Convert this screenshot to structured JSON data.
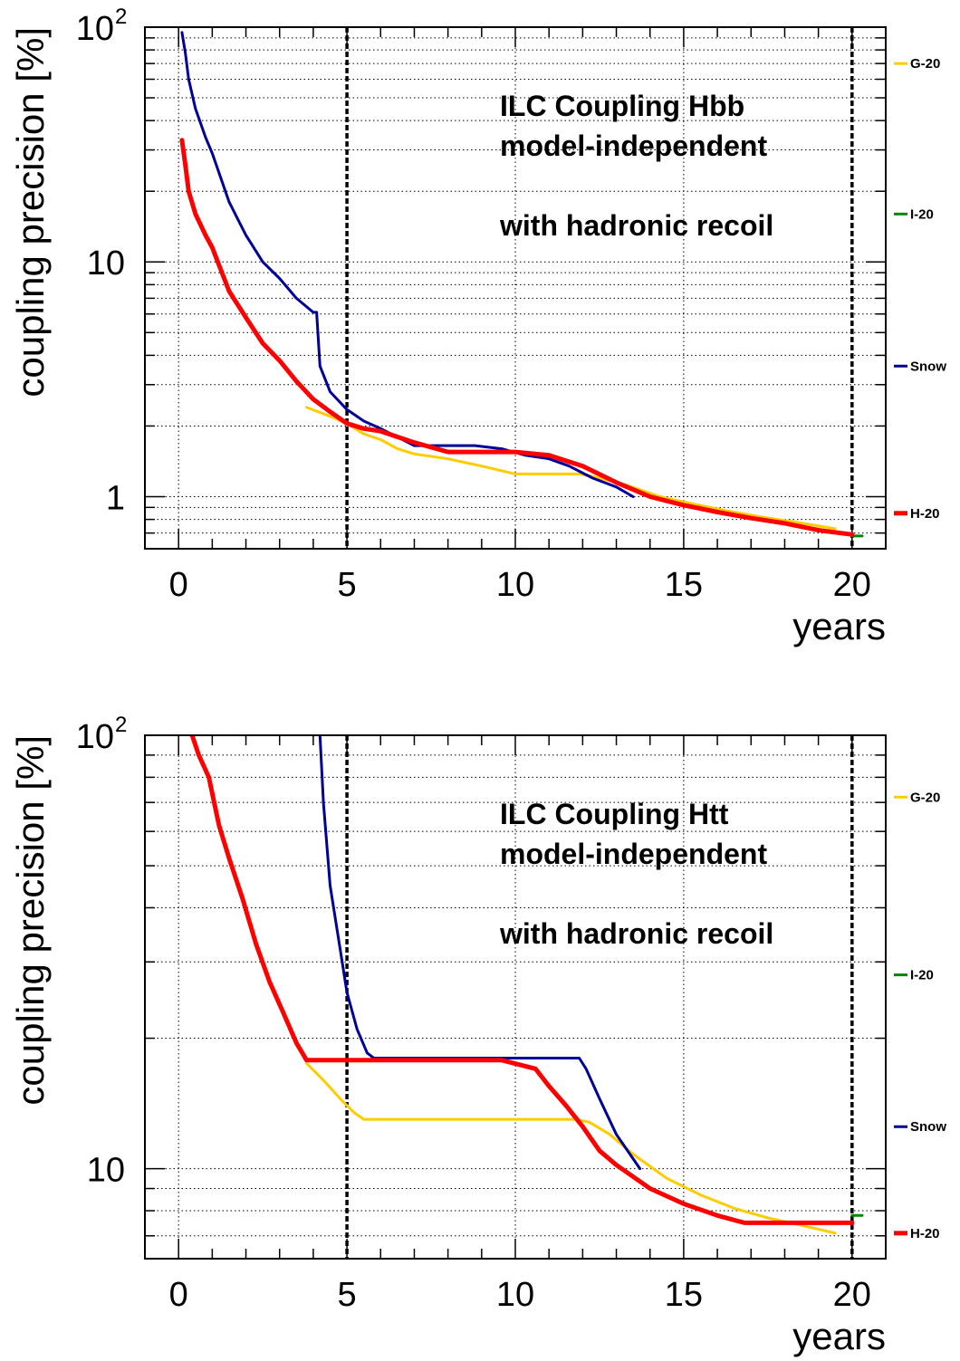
{
  "chart_data": [
    {
      "type": "line",
      "xlabel": "years",
      "ylabel": "coupling precision [%]",
      "xlim": [
        -1,
        21
      ],
      "ylim": [
        0.6,
        100
      ],
      "yscale": "log",
      "xticks": [
        "0",
        "5",
        "10",
        "15",
        "20"
      ],
      "yticks": [
        {
          "value": 1,
          "label": "1"
        },
        {
          "value": 10,
          "label": "10"
        },
        {
          "value": 100,
          "label": "10",
          "exp": "2"
        }
      ],
      "grid": true,
      "vlines": [
        5,
        20
      ],
      "annotations": [
        "ILC Coupling Hbb",
        "model-independent",
        "with hadronic recoil"
      ],
      "legend": [
        {
          "name": "G-20",
          "color": "#ffcc00",
          "value": 70
        },
        {
          "name": "I-20",
          "color": "#008800",
          "value": 16
        },
        {
          "name": "Snow",
          "color": "#000099",
          "value": 3.6
        },
        {
          "name": "H-20",
          "color": "#ff0000",
          "value": 0.85
        }
      ],
      "series": [
        {
          "name": "G-20",
          "color": "#ffcc00",
          "width": 3,
          "x": [
            3.8,
            4.5,
            5.0,
            5.5,
            6.0,
            6.5,
            7.0,
            8.0,
            9.0,
            10.0,
            11.0,
            11.9,
            12.3,
            13.3,
            14.3,
            15.3,
            16.3,
            17.3,
            18.3,
            19.5
          ],
          "y": [
            2.4,
            2.2,
            2.05,
            1.85,
            1.75,
            1.6,
            1.52,
            1.45,
            1.35,
            1.25,
            1.25,
            1.25,
            1.22,
            1.12,
            1.0,
            0.93,
            0.87,
            0.82,
            0.78,
            0.73
          ]
        },
        {
          "name": "I-20",
          "color": "#008800",
          "width": 3,
          "x": [
            20.0,
            20.3
          ],
          "y": [
            0.68,
            0.68
          ]
        },
        {
          "name": "Snow",
          "color": "#000099",
          "width": 3,
          "x": [
            0.1,
            0.2,
            0.3,
            0.5,
            0.8,
            1.0,
            1.2,
            1.5,
            2.0,
            2.5,
            3.0,
            3.5,
            4.0,
            4.1,
            4.2,
            4.5,
            5.0,
            5.5,
            6.0,
            7.0,
            8.0,
            8.8,
            9.6,
            10.3,
            11.0,
            11.6,
            12.3,
            13.0,
            13.5
          ],
          "y": [
            95,
            78,
            60,
            45,
            34,
            29,
            24,
            18,
            13,
            10,
            8.5,
            7,
            6.1,
            6.1,
            3.6,
            2.8,
            2.35,
            2.1,
            1.95,
            1.65,
            1.65,
            1.65,
            1.6,
            1.5,
            1.45,
            1.35,
            1.2,
            1.1,
            1.0
          ]
        },
        {
          "name": "H-20",
          "color": "#ff0000",
          "width": 5,
          "x": [
            0.1,
            0.2,
            0.3,
            0.5,
            0.8,
            1.0,
            1.5,
            2.0,
            2.5,
            3.0,
            3.5,
            4.0,
            4.5,
            5.0,
            5.5,
            6.0,
            7.0,
            8.0,
            9.0,
            10.0,
            11.0,
            12.0,
            13.0,
            14.0,
            15.0,
            16.0,
            17.0,
            18.0,
            19.0,
            20.0
          ],
          "y": [
            33,
            26,
            20,
            16,
            13,
            11.5,
            7.5,
            5.8,
            4.5,
            3.8,
            3.1,
            2.6,
            2.3,
            2.05,
            1.95,
            1.9,
            1.7,
            1.55,
            1.55,
            1.55,
            1.5,
            1.35,
            1.15,
            1.0,
            0.92,
            0.86,
            0.81,
            0.77,
            0.72,
            0.69
          ]
        }
      ]
    },
    {
      "type": "line",
      "xlabel": "years",
      "ylabel": "coupling precision [%]",
      "xlim": [
        -1,
        21
      ],
      "ylim": [
        6.2,
        100
      ],
      "yscale": "log",
      "xticks": [
        "0",
        "5",
        "10",
        "15",
        "20"
      ],
      "yticks": [
        {
          "value": 10,
          "label": "10"
        },
        {
          "value": 100,
          "label": "10",
          "exp": "2"
        }
      ],
      "grid": true,
      "vlines": [
        5,
        20
      ],
      "annotations": [
        "ILC Coupling Htt",
        "model-independent",
        "with hadronic recoil"
      ],
      "legend": [
        {
          "name": "G-20",
          "color": "#ffcc00",
          "value": 72
        },
        {
          "name": "I-20",
          "color": "#008800",
          "value": 28
        },
        {
          "name": "Snow",
          "color": "#000099",
          "value": 12.5
        },
        {
          "name": "H-20",
          "color": "#ff0000",
          "value": 7.1
        }
      ],
      "series": [
        {
          "name": "G-20",
          "color": "#ffcc00",
          "width": 3,
          "x": [
            3.8,
            4.3,
            4.8,
            5.2,
            5.5,
            6.0,
            7.0,
            8.0,
            9.0,
            10.0,
            11.0,
            11.8,
            12.2,
            12.8,
            13.5,
            14.5,
            15.5,
            16.5,
            17.5,
            18.5,
            19.5
          ],
          "y": [
            17.5,
            16,
            14.5,
            13.5,
            13,
            13,
            13,
            13,
            13,
            13,
            13,
            13,
            12.8,
            12,
            10.8,
            9.5,
            8.7,
            8.1,
            7.7,
            7.4,
            7.1
          ]
        },
        {
          "name": "I-20",
          "color": "#008800",
          "width": 3,
          "x": [
            20.0,
            20.3
          ],
          "y": [
            7.8,
            7.8
          ]
        },
        {
          "name": "Snow",
          "color": "#000099",
          "width": 3,
          "x": [
            4.2,
            4.3,
            4.5,
            4.8,
            5.0,
            5.3,
            5.6,
            5.8,
            7.0,
            8.0,
            9.0,
            10.0,
            11.0,
            11.6,
            11.9,
            12.1,
            12.5,
            13.0,
            13.7
          ],
          "y": [
            100,
            70,
            45,
            32,
            25.5,
            21,
            18.5,
            18,
            18,
            18,
            18,
            18,
            18,
            18,
            18,
            17,
            14.5,
            12,
            10
          ]
        },
        {
          "name": "H-20",
          "color": "#ff0000",
          "width": 5,
          "x": [
            0.4,
            0.6,
            0.9,
            1.2,
            1.5,
            1.9,
            2.3,
            2.7,
            3.1,
            3.5,
            3.8,
            5.0,
            6.0,
            7.0,
            8.0,
            9.0,
            9.6,
            10.6,
            11.0,
            11.5,
            12.0,
            12.5,
            13.0,
            14.0,
            15.0,
            16.0,
            16.8,
            17.5,
            18.5,
            19.5,
            20.0
          ],
          "y": [
            100,
            90,
            80,
            62,
            52,
            42,
            33,
            27,
            23,
            19.5,
            17.8,
            17.8,
            17.8,
            17.8,
            17.8,
            17.8,
            17.8,
            17,
            15.5,
            14,
            12.5,
            11,
            10.2,
            9.0,
            8.3,
            7.8,
            7.5,
            7.5,
            7.5,
            7.5,
            7.5
          ]
        }
      ]
    }
  ]
}
